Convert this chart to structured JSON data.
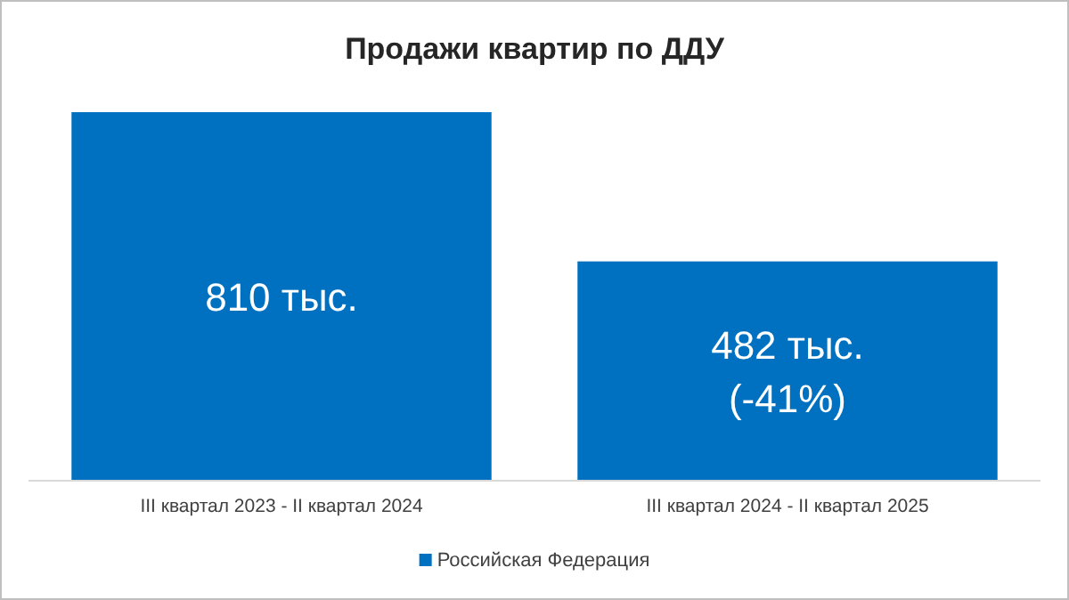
{
  "chart_data": {
    "type": "bar",
    "title": "Продажи квартир по ДДУ",
    "categories": [
      "III квартал 2023 - II квартал 2024",
      "III квартал 2024 - II квартал 2025"
    ],
    "series": [
      {
        "name": "Российская Федерация",
        "color": "#0070c0",
        "values": [
          810,
          482
        ],
        "value_labels": [
          "810 тыс.",
          "482 тыс.\n(-41%)"
        ]
      }
    ],
    "legend": "bottom"
  }
}
